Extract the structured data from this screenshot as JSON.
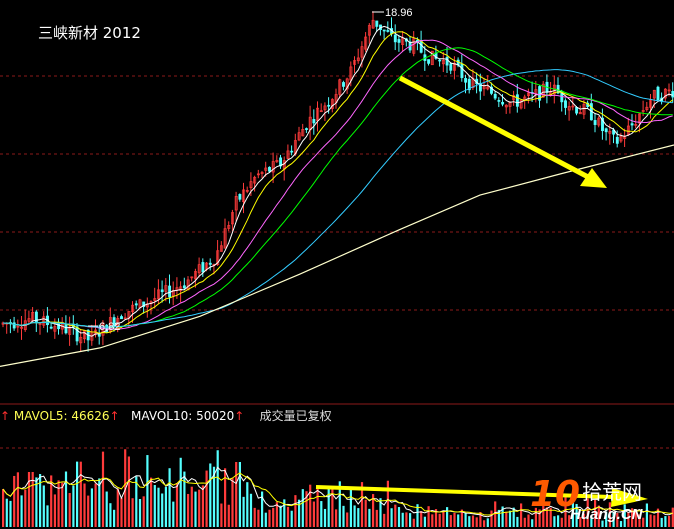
{
  "title": "三峡新材 2012",
  "annotations": {
    "high_label": "18.96",
    "low_label": "6.82"
  },
  "volume_legend": {
    "mavol5_label": "MAVOL5:",
    "mavol5_value": "46626",
    "mavol10_label": "MAVOL10:",
    "mavol10_value": "50020",
    "note": "成交量已复权"
  },
  "watermark": {
    "num": "10",
    "cn": "拾荒网",
    "site": "Huang.CN"
  },
  "colors": {
    "background": "#000000",
    "up_candle": "#ff3b3b",
    "down_candle": "#54ffff",
    "ma5": "#ffffff",
    "ma10": "#ffff00",
    "ma20": "#ff66ff",
    "ma30": "#00ff00",
    "ma60": "#33ccff",
    "ma250": "#ffffcc",
    "arrow": "#ffff00",
    "grid": "#8b1a1a"
  },
  "chart_data": [
    {
      "type": "candlestick",
      "ylim": [
        4.6,
        19.4
      ],
      "grid": true,
      "price_path": [
        [
          0,
          7.4
        ],
        [
          30,
          7.6
        ],
        [
          60,
          7.3
        ],
        [
          88,
          6.82
        ],
        [
          120,
          7.8
        ],
        [
          150,
          8.3
        ],
        [
          185,
          9.0
        ],
        [
          215,
          10.0
        ],
        [
          235,
          12.0
        ],
        [
          255,
          13.0
        ],
        [
          280,
          13.5
        ],
        [
          305,
          15.0
        ],
        [
          330,
          16.0
        ],
        [
          350,
          17.0
        ],
        [
          372,
          18.96
        ],
        [
          392,
          18.2
        ],
        [
          412,
          18.0
        ],
        [
          430,
          17.5
        ],
        [
          450,
          17.3
        ],
        [
          470,
          16.5
        ],
        [
          490,
          16.2
        ],
        [
          510,
          15.8
        ],
        [
          530,
          16.0
        ],
        [
          550,
          16.4
        ],
        [
          570,
          15.7
        ],
        [
          590,
          15.4
        ],
        [
          605,
          14.6
        ],
        [
          615,
          14.3
        ],
        [
          630,
          14.9
        ],
        [
          650,
          16.0
        ],
        [
          674,
          16.3
        ]
      ],
      "ma250": [
        [
          0,
          5.8
        ],
        [
          100,
          6.5
        ],
        [
          200,
          7.7
        ],
        [
          300,
          9.3
        ],
        [
          400,
          11.0
        ],
        [
          480,
          12.3
        ],
        [
          560,
          13.1
        ],
        [
          674,
          14.2
        ]
      ]
    },
    {
      "type": "bar",
      "ylim": [
        0,
        120000
      ],
      "series": [
        {
          "name": "MAVOL5",
          "values": [
            46626
          ]
        },
        {
          "name": "MAVOL10",
          "values": [
            50020
          ]
        }
      ]
    }
  ]
}
